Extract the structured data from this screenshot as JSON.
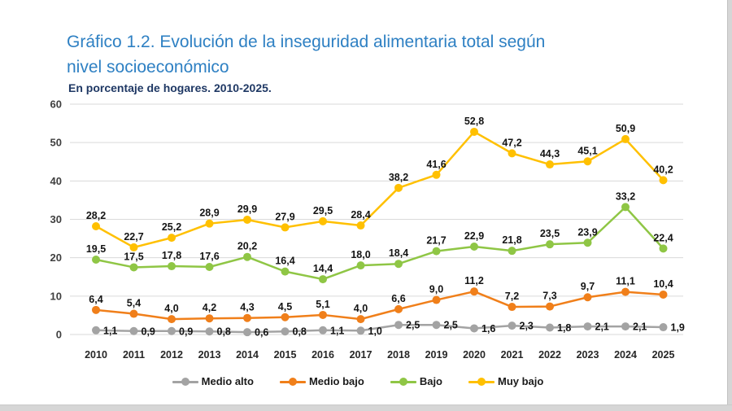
{
  "page": {
    "title": "Gráfico 1.2. Evolución de la inseguridad alimentaria total según nivel socioeconómico",
    "subtitle": "En porcentaje de hogares. 2010-2025."
  },
  "colors": {
    "title_blue": "#2E80C3",
    "subtitle_navy": "#1F3864",
    "grid": "#DADADA",
    "y_axis_text": "#3f3f3f",
    "x_axis_text": "#262626",
    "data_label_text": "#141414"
  },
  "chart_data": {
    "type": "line",
    "title": "Gráfico 1.2. Evolución de la inseguridad alimentaria total según nivel socioeconómico",
    "subtitle": "En porcentaje de hogares. 2010-2025.",
    "x": [
      "2010",
      "2011",
      "2012",
      "2013",
      "2014",
      "2015",
      "2016",
      "2017",
      "2018",
      "2019",
      "2020",
      "2021",
      "2022",
      "2023",
      "2024",
      "2025"
    ],
    "ylim": [
      0,
      60
    ],
    "yticks": [
      0,
      10,
      20,
      30,
      40,
      50,
      60
    ],
    "grid": "horizontal",
    "legend_position": "bottom",
    "decimal_separator": ",",
    "series": [
      {
        "name": "Medio alto",
        "color": "#A3A3A3",
        "label_position": "right",
        "values": [
          1.1,
          0.9,
          0.9,
          0.8,
          0.6,
          0.8,
          1.1,
          1.0,
          2.5,
          2.5,
          1.6,
          2.3,
          1.8,
          2.1,
          2.1,
          1.9
        ]
      },
      {
        "name": "Medio bajo",
        "color": "#F07F1A",
        "label_position": "above",
        "values": [
          6.4,
          5.4,
          4.0,
          4.2,
          4.3,
          4.5,
          5.1,
          4.0,
          6.6,
          9.0,
          11.2,
          7.2,
          7.3,
          9.7,
          11.1,
          10.4
        ]
      },
      {
        "name": "Bajo",
        "color": "#8FC645",
        "label_position": "above",
        "values": [
          19.5,
          17.5,
          17.8,
          17.6,
          20.2,
          16.4,
          14.4,
          18.0,
          18.4,
          21.7,
          22.9,
          21.8,
          23.5,
          23.9,
          33.2,
          22.4
        ]
      },
      {
        "name": "Muy bajo",
        "color": "#FFC000",
        "label_position": "above",
        "values": [
          28.2,
          22.7,
          25.2,
          28.9,
          29.9,
          27.9,
          29.5,
          28.4,
          38.2,
          41.6,
          52.8,
          47.2,
          44.3,
          45.1,
          50.9,
          40.2
        ]
      }
    ]
  }
}
